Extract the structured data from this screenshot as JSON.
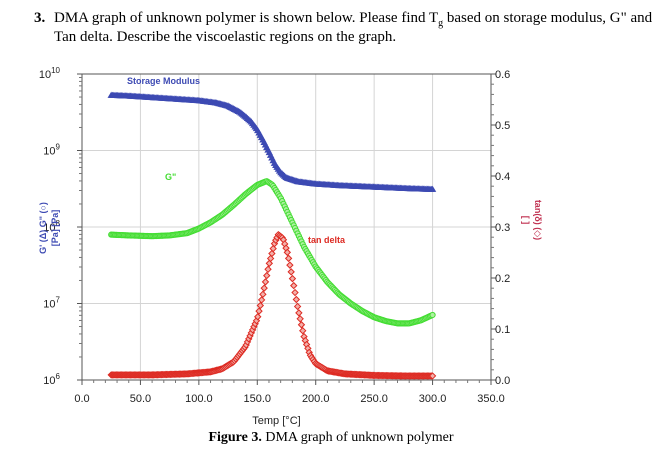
{
  "question": {
    "number": "3.",
    "text_before_sub": "DMA graph of unknown polymer is shown below. Please find T",
    "subscript": "g",
    "text_after_sub": " based on storage modulus, G\" and Tan delta. Describe the viscoelastic regions on the graph."
  },
  "caption": {
    "figure_label": "Figure 3.",
    "text": " DMA graph of unknown polymer"
  },
  "chart_data": {
    "type": "scatter",
    "x_axis": {
      "label": "Temp [°C]",
      "range": [
        0,
        350
      ],
      "ticks": [
        0,
        50,
        100,
        150,
        200,
        250,
        300,
        350
      ],
      "tick_labels": [
        "0.0",
        "50.0",
        "100.0",
        "150.0",
        "200.0",
        "250.0",
        "300.0",
        "350.0"
      ]
    },
    "y_left": {
      "label_line1": "G' (Δ)   G\" (○)",
      "label_line2": "[Pa]              [Pa]",
      "scale": "log",
      "range_exp": [
        6,
        10
      ],
      "ticks_exp": [
        6,
        7,
        8,
        9,
        10
      ],
      "tick_base": "10"
    },
    "y_right": {
      "label_line1": "tan(δ) (◇)",
      "label_line2": "[ ]",
      "range": [
        0,
        0.6
      ],
      "ticks": [
        0,
        0.1,
        0.2,
        0.3,
        0.4,
        0.5,
        0.6
      ],
      "tick_labels": [
        "0.0",
        "0.1",
        "0.2",
        "0.3",
        "0.4",
        "0.5",
        "0.6"
      ]
    },
    "grid": true,
    "series": [
      {
        "name": "Storage Modulus",
        "label": "Storage Modulus",
        "axis": "left",
        "color": "#3d4ab3",
        "marker": "triangle",
        "points": [
          [
            25,
            9.72
          ],
          [
            40,
            9.71
          ],
          [
            60,
            9.69
          ],
          [
            80,
            9.67
          ],
          [
            100,
            9.65
          ],
          [
            115,
            9.62
          ],
          [
            125,
            9.58
          ],
          [
            135,
            9.5
          ],
          [
            140,
            9.44
          ],
          [
            145,
            9.37
          ],
          [
            150,
            9.27
          ],
          [
            155,
            9.13
          ],
          [
            160,
            8.98
          ],
          [
            165,
            8.82
          ],
          [
            170,
            8.71
          ],
          [
            175,
            8.64
          ],
          [
            185,
            8.59
          ],
          [
            200,
            8.56
          ],
          [
            220,
            8.54
          ],
          [
            250,
            8.52
          ],
          [
            280,
            8.5
          ],
          [
            300,
            8.49
          ]
        ]
      },
      {
        "name": "G\"",
        "label": "G\"",
        "axis": "left",
        "color": "#44dd33",
        "marker": "circle",
        "points": [
          [
            25,
            7.9
          ],
          [
            40,
            7.89
          ],
          [
            60,
            7.88
          ],
          [
            75,
            7.89
          ],
          [
            90,
            7.92
          ],
          [
            100,
            7.98
          ],
          [
            110,
            8.06
          ],
          [
            120,
            8.16
          ],
          [
            130,
            8.29
          ],
          [
            140,
            8.43
          ],
          [
            150,
            8.55
          ],
          [
            158,
            8.6
          ],
          [
            163,
            8.55
          ],
          [
            170,
            8.38
          ],
          [
            180,
            8.06
          ],
          [
            190,
            7.74
          ],
          [
            200,
            7.48
          ],
          [
            210,
            7.28
          ],
          [
            220,
            7.12
          ],
          [
            230,
            7.0
          ],
          [
            240,
            6.9
          ],
          [
            250,
            6.82
          ],
          [
            260,
            6.77
          ],
          [
            270,
            6.74
          ],
          [
            280,
            6.74
          ],
          [
            290,
            6.78
          ],
          [
            300,
            6.85
          ]
        ]
      },
      {
        "name": "tan delta",
        "label": "tan delta",
        "axis": "right",
        "color": "#dd2a22",
        "marker": "diamond",
        "points": [
          [
            25,
            0.01
          ],
          [
            60,
            0.01
          ],
          [
            90,
            0.012
          ],
          [
            110,
            0.016
          ],
          [
            120,
            0.022
          ],
          [
            130,
            0.036
          ],
          [
            140,
            0.066
          ],
          [
            150,
            0.12
          ],
          [
            155,
            0.17
          ],
          [
            160,
            0.226
          ],
          [
            165,
            0.27
          ],
          [
            168,
            0.285
          ],
          [
            172,
            0.278
          ],
          [
            176,
            0.248
          ],
          [
            180,
            0.2
          ],
          [
            185,
            0.138
          ],
          [
            190,
            0.085
          ],
          [
            195,
            0.05
          ],
          [
            200,
            0.032
          ],
          [
            210,
            0.018
          ],
          [
            225,
            0.012
          ],
          [
            250,
            0.009
          ],
          [
            275,
            0.008
          ],
          [
            300,
            0.008
          ]
        ]
      }
    ]
  }
}
